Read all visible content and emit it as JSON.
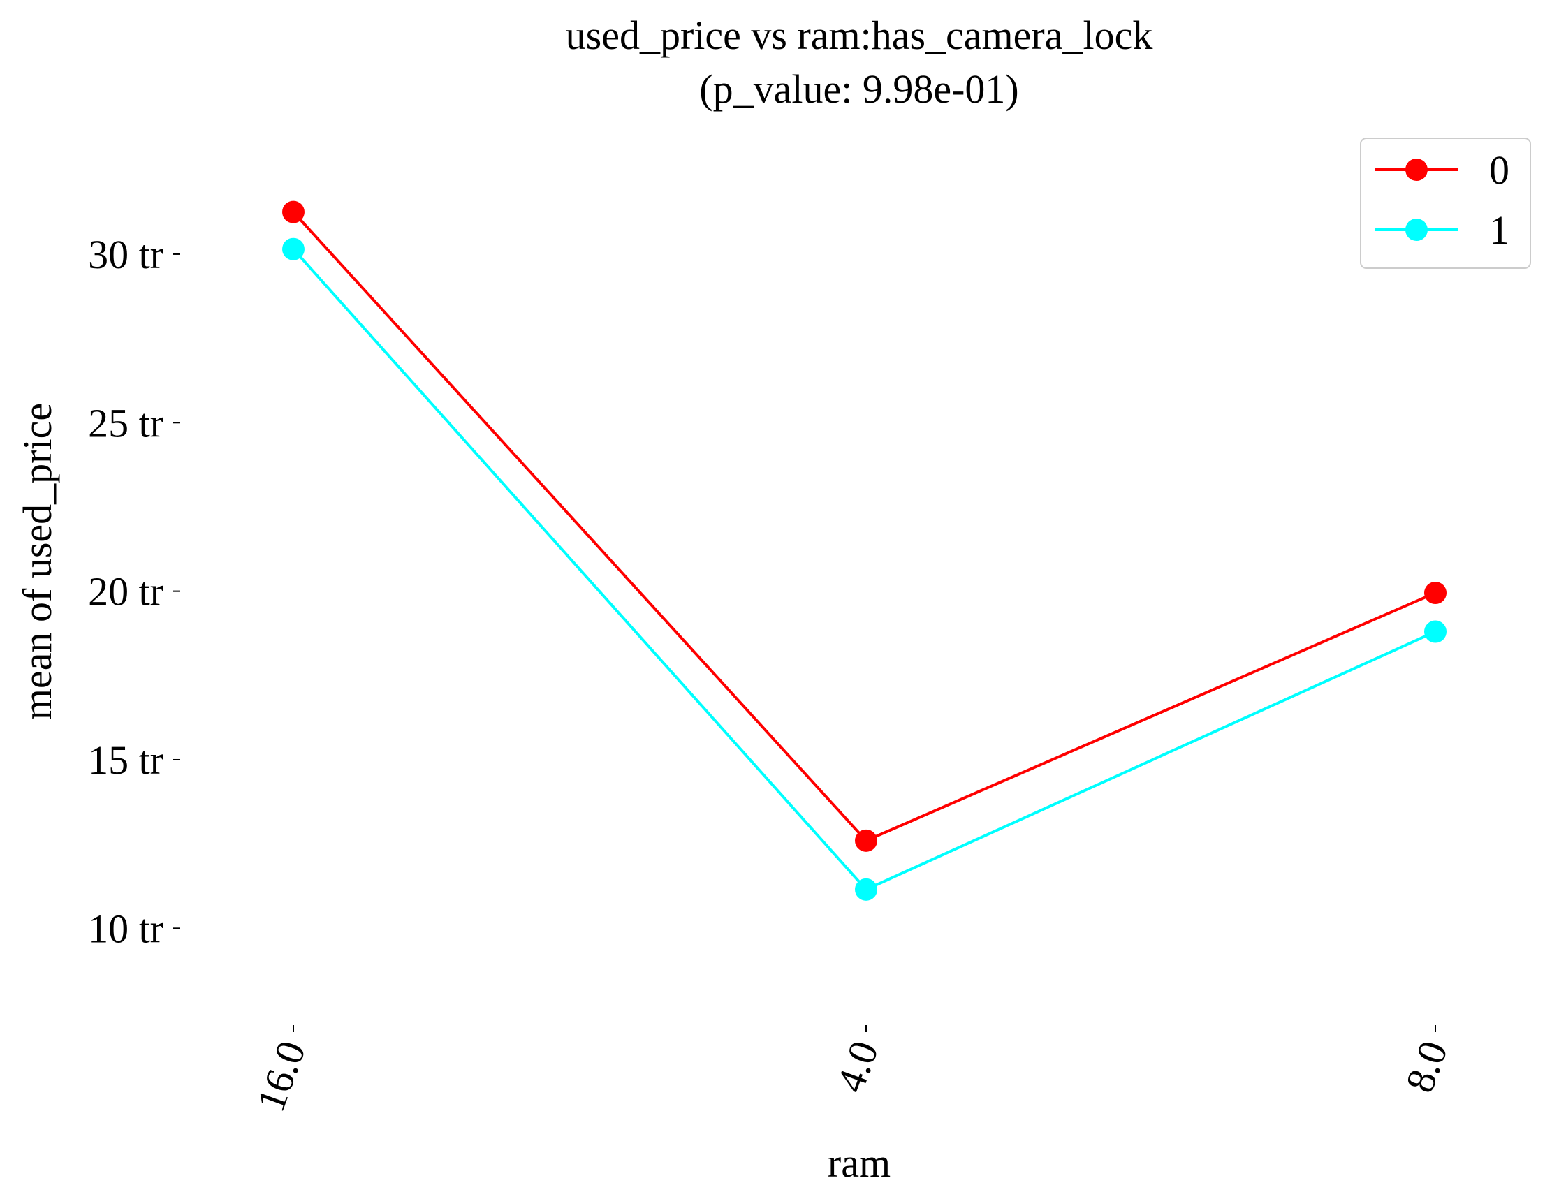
{
  "chart_data": {
    "type": "line",
    "title": "used_price vs ram:has_camera_lock",
    "subtitle": "(p_value: 9.98e-01)",
    "xlabel": "ram",
    "ylabel": "mean of used_price",
    "categories": [
      "16.0",
      "4.0",
      "8.0"
    ],
    "y_ticks": [
      {
        "value": 10,
        "label": "10 tr"
      },
      {
        "value": 15,
        "label": "15 tr"
      },
      {
        "value": 20,
        "label": "20 tr"
      },
      {
        "value": 25,
        "label": "25 tr"
      },
      {
        "value": 30,
        "label": "30 tr"
      }
    ],
    "ylim": [
      7.5,
      33.5
    ],
    "grid": false,
    "legend_position": "top-right",
    "series": [
      {
        "name": "0",
        "color": "#ff0000",
        "values": [
          31.25,
          12.6,
          19.95
        ]
      },
      {
        "name": "1",
        "color": "#00ffff",
        "values": [
          30.15,
          11.15,
          18.8
        ]
      }
    ]
  }
}
